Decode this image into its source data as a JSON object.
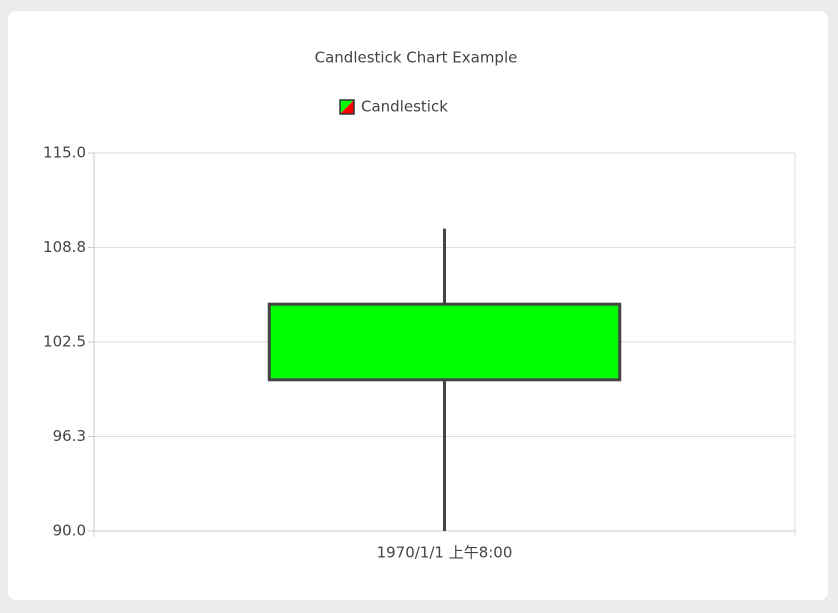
{
  "chart_data": {
    "type": "candlestick",
    "title": "Candlestick Chart Example",
    "categories": [
      "1970/1/1 上午8:00"
    ],
    "series": [
      {
        "name": "Candlestick",
        "open": [
          100
        ],
        "high": [
          110
        ],
        "low": [
          90
        ],
        "close": [
          105
        ],
        "up_color": "#00ff00",
        "down_color": "#ff0000"
      }
    ],
    "ylim": [
      90,
      115
    ],
    "yticks": [
      {
        "value": 90,
        "label": "90.0"
      },
      {
        "value": 96.25,
        "label": "96.3"
      },
      102.5,
      {
        "value": 108.75,
        "label": "108.8"
      },
      {
        "value": 115,
        "label": "115.0"
      }
    ],
    "grid": true
  }
}
